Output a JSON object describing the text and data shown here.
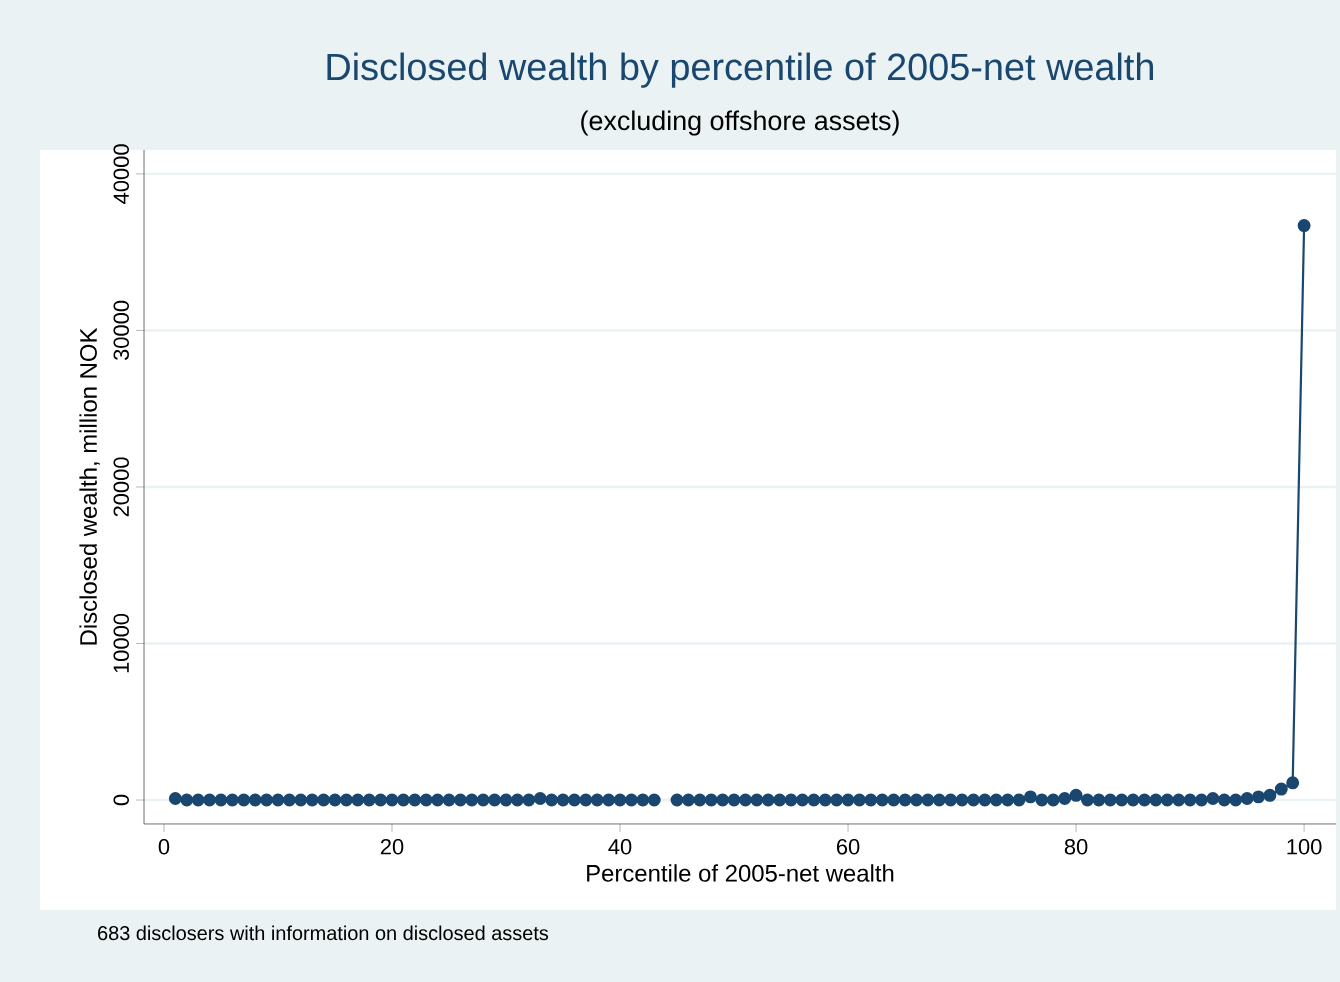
{
  "chart_data": {
    "type": "line",
    "title": "Disclosed wealth by percentile of 2005-net wealth",
    "subtitle": "(excluding offshore assets)",
    "xlabel": "Percentile of 2005-net wealth",
    "ylabel": "Disclosed wealth, million NOK",
    "annotations": [
      "683 disclosers with information on disclosed assets"
    ],
    "x": [
      1,
      2,
      3,
      4,
      5,
      6,
      7,
      8,
      9,
      10,
      11,
      12,
      13,
      14,
      15,
      16,
      17,
      18,
      19,
      20,
      21,
      22,
      23,
      24,
      25,
      26,
      27,
      28,
      29,
      30,
      31,
      32,
      33,
      34,
      35,
      36,
      37,
      38,
      39,
      40,
      41,
      42,
      43,
      44,
      45,
      46,
      47,
      48,
      49,
      50,
      51,
      52,
      53,
      54,
      55,
      56,
      57,
      58,
      59,
      60,
      61,
      62,
      63,
      64,
      65,
      66,
      67,
      68,
      69,
      70,
      71,
      72,
      73,
      74,
      75,
      76,
      77,
      78,
      79,
      80,
      81,
      82,
      83,
      84,
      85,
      86,
      87,
      88,
      89,
      90,
      91,
      92,
      93,
      94,
      95,
      96,
      97,
      98,
      99,
      100
    ],
    "series": [
      {
        "color": "#1a476f",
        "values": [
          100,
          0,
          0,
          0,
          0,
          0,
          0,
          0,
          0,
          0,
          0,
          0,
          0,
          0,
          0,
          0,
          0,
          0,
          0,
          0,
          0,
          0,
          0,
          0,
          0,
          0,
          0,
          0,
          0,
          0,
          0,
          0,
          100,
          0,
          0,
          0,
          0,
          0,
          0,
          0,
          0,
          0,
          0,
          null,
          0,
          0,
          0,
          0,
          0,
          0,
          0,
          0,
          0,
          0,
          0,
          0,
          0,
          0,
          0,
          0,
          0,
          0,
          0,
          0,
          0,
          0,
          0,
          0,
          0,
          0,
          0,
          0,
          0,
          0,
          0,
          200,
          0,
          0,
          100,
          300,
          0,
          0,
          0,
          0,
          0,
          0,
          0,
          0,
          0,
          0,
          0,
          100,
          0,
          0,
          100,
          200,
          300,
          700,
          1100,
          36700
        ]
      }
    ],
    "xlim": [
      -1.75,
      102.8
    ],
    "ylim": [
      -1530,
      41530
    ],
    "xticks": [
      0,
      20,
      40,
      60,
      80,
      100
    ],
    "yticks": [
      0,
      10000,
      20000,
      30000,
      40000
    ],
    "grid": "y",
    "marker": "circle",
    "line_style": "solid"
  }
}
